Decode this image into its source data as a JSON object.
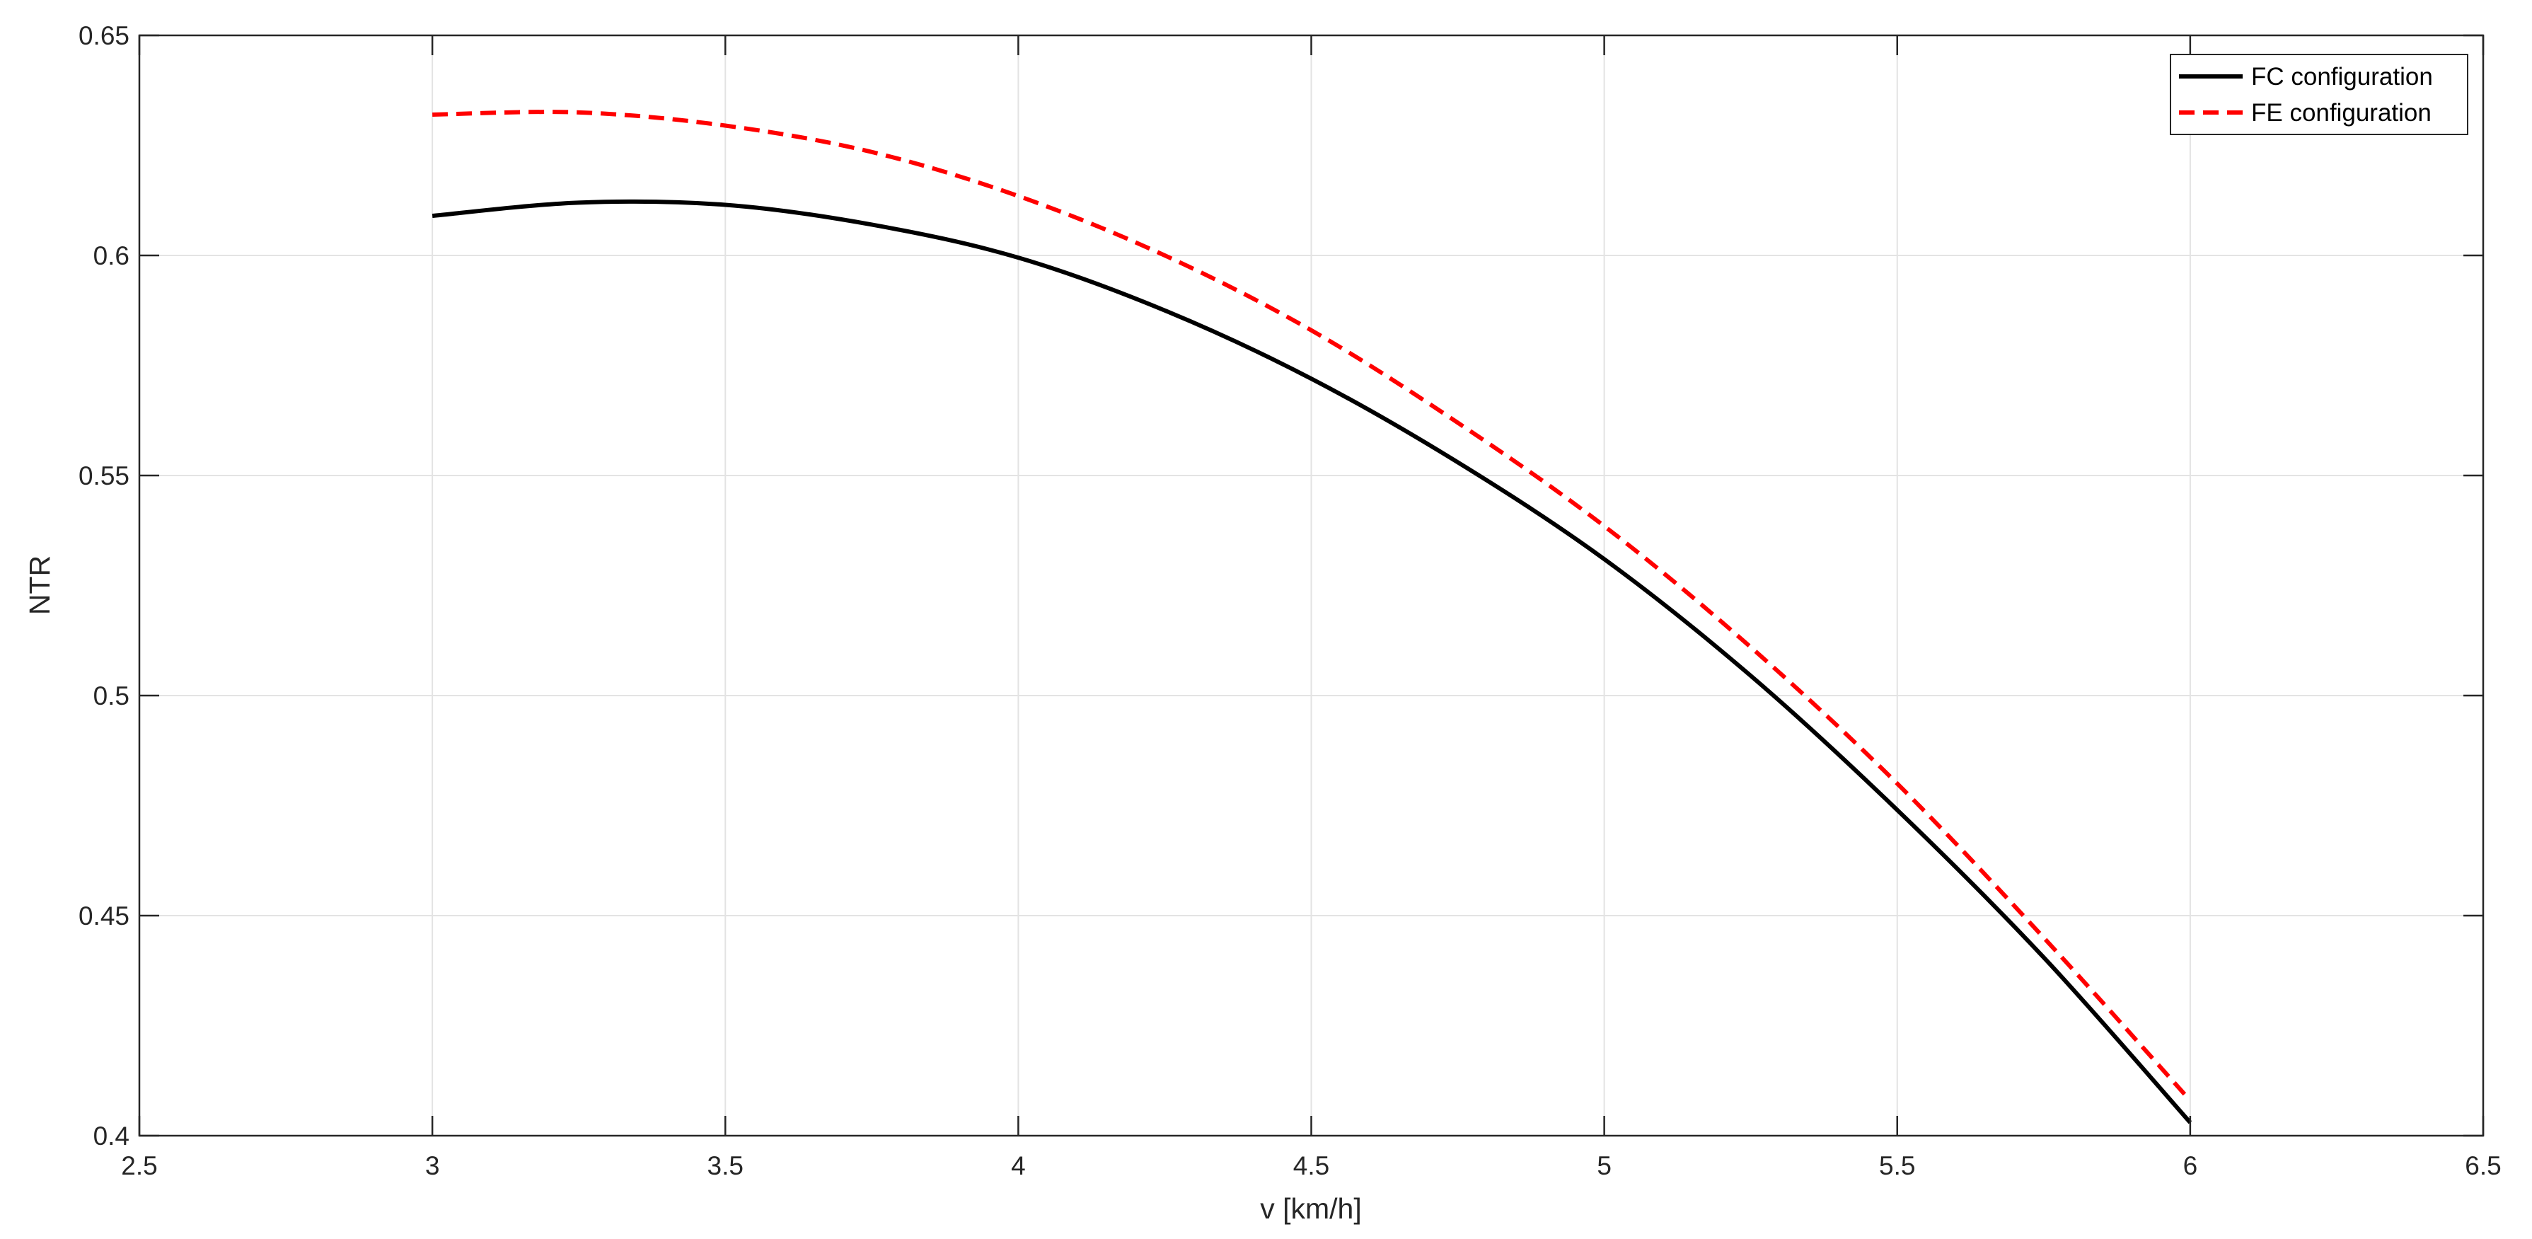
{
  "chart_data": {
    "type": "line",
    "title": "",
    "xlabel": "v [km/h]",
    "ylabel": "NTR",
    "xlim": [
      2.5,
      6.5
    ],
    "ylim": [
      0.4,
      0.65
    ],
    "xticks": [
      2.5,
      3,
      3.5,
      4,
      4.5,
      5,
      5.5,
      6,
      6.5
    ],
    "yticks": [
      0.4,
      0.45,
      0.5,
      0.55,
      0.6,
      0.65
    ],
    "xtick_labels": [
      "2.5",
      "3",
      "3.5",
      "4",
      "4.5",
      "5",
      "5.5",
      "6",
      "6.5"
    ],
    "ytick_labels": [
      "0.4",
      "0.45",
      "0.5",
      "0.55",
      "0.6",
      "0.65"
    ],
    "grid": true,
    "legend_position": "top-right",
    "series": [
      {
        "name": "FC configuration",
        "color": "#000000",
        "style": "solid",
        "x": [
          3.0,
          3.25,
          3.5,
          3.75,
          4.0,
          4.25,
          4.5,
          4.75,
          5.0,
          5.25,
          5.5,
          5.75,
          6.0
        ],
        "y": [
          0.609,
          0.612,
          0.6115,
          0.607,
          0.5995,
          0.5875,
          0.572,
          0.553,
          0.531,
          0.5045,
          0.474,
          0.4405,
          0.403
        ]
      },
      {
        "name": "FE configuration",
        "color": "#ff0000",
        "style": "dashed",
        "x": [
          3.0,
          3.25,
          3.5,
          3.75,
          4.0,
          4.25,
          4.5,
          4.75,
          5.0,
          5.25,
          5.5,
          5.75,
          6.0
        ],
        "y": [
          0.632,
          0.6325,
          0.6295,
          0.6235,
          0.6135,
          0.6,
          0.583,
          0.562,
          0.5385,
          0.511,
          0.48,
          0.445,
          0.408
        ]
      }
    ]
  }
}
